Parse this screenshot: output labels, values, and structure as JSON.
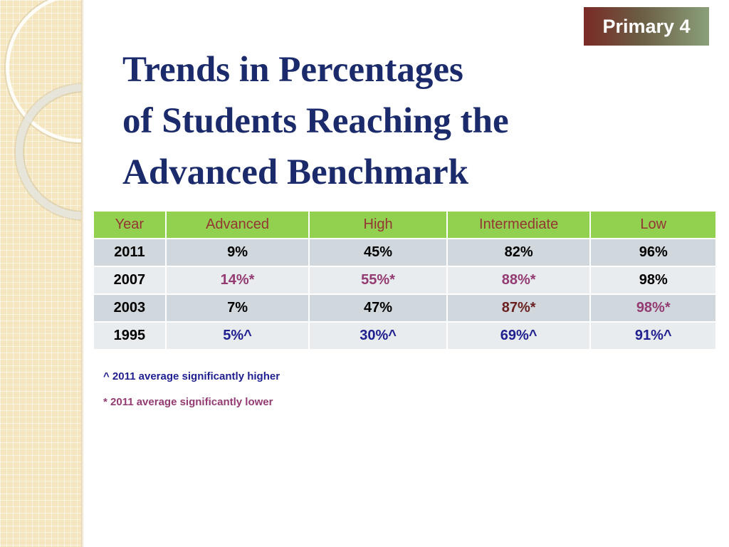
{
  "badge": "Primary 4",
  "title": {
    "line1": "Trends in Percentages",
    "line2": "of Students Reaching the",
    "line3": "Advanced Benchmark"
  },
  "table": {
    "headers": [
      "Year",
      "Advanced",
      "High",
      "Intermediate",
      "Low"
    ],
    "rows": [
      [
        "2011",
        "9%",
        "45%",
        "82%",
        "96%"
      ],
      [
        "2007",
        "14%*",
        "55%*",
        "88%*",
        "98%"
      ],
      [
        "2003",
        "7%",
        "47%",
        "87%*",
        "98%*"
      ],
      [
        "1995",
        "5%^",
        "30%^",
        "69%^",
        "91%^"
      ]
    ]
  },
  "notes": {
    "higher": "^ 2011 average significantly higher",
    "lower": "* 2011 average significantly lower"
  },
  "colors": {
    "title": "#1b2a6b",
    "header_bg": "#92d050",
    "header_text": "#943634",
    "higher": "#1f1f8f",
    "lower": "#933b72"
  }
}
